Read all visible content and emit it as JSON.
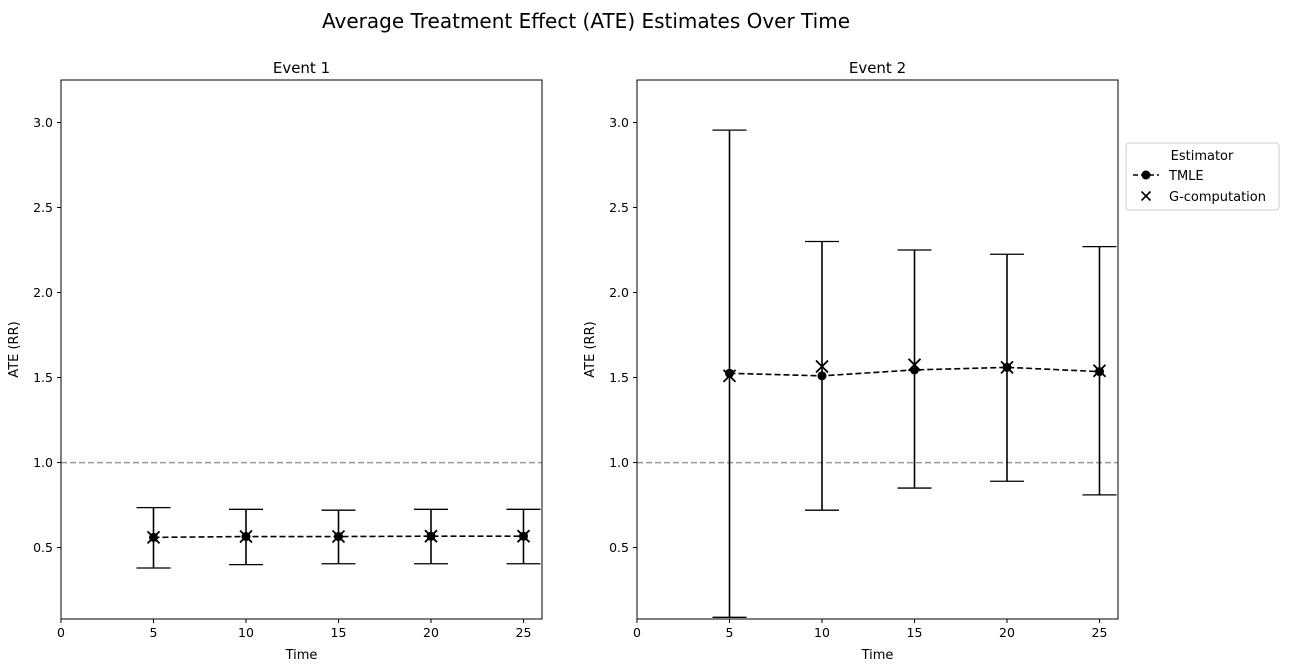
{
  "figure": {
    "title": "Average Treatment Effect (ATE) Estimates Over Time"
  },
  "legend": {
    "title": "Estimator",
    "placement": "outside-right",
    "entries": [
      {
        "label": "TMLE",
        "marker": "circle",
        "line": "dashed"
      },
      {
        "label": "G-computation",
        "marker": "x",
        "line": "none"
      }
    ]
  },
  "chart_data": [
    {
      "type": "scatter",
      "title": "Event 1",
      "xlabel": "Time",
      "ylabel": "ATE (RR)",
      "xlim": [
        0,
        26
      ],
      "ylim": [
        0.08,
        3.25
      ],
      "xticks": [
        0,
        5,
        10,
        15,
        20,
        25
      ],
      "xtick_labels": [
        "0",
        "5",
        "10",
        "15",
        "20",
        "25"
      ],
      "yticks": [
        0.5,
        1.0,
        1.5,
        2.0,
        2.5,
        3.0
      ],
      "ytick_labels": [
        "0.5",
        "1.0",
        "1.5",
        "2.0",
        "2.5",
        "3.0"
      ],
      "reference_line": 1.0,
      "grid": false,
      "x": [
        5,
        10,
        15,
        20,
        25
      ],
      "series": [
        {
          "name": "TMLE",
          "values": [
            0.56,
            0.565,
            0.565,
            0.567,
            0.567
          ],
          "ci_lower": [
            0.38,
            0.4,
            0.405,
            0.405,
            0.405
          ],
          "ci_upper": [
            0.735,
            0.725,
            0.72,
            0.725,
            0.725
          ]
        },
        {
          "name": "G-computation",
          "values": [
            0.56,
            0.565,
            0.565,
            0.567,
            0.567
          ]
        }
      ]
    },
    {
      "type": "scatter",
      "title": "Event 2",
      "xlabel": "Time",
      "ylabel": "ATE (RR)",
      "xlim": [
        0,
        26
      ],
      "ylim": [
        0.08,
        3.25
      ],
      "xticks": [
        0,
        5,
        10,
        15,
        20,
        25
      ],
      "xtick_labels": [
        "0",
        "5",
        "10",
        "15",
        "20",
        "25"
      ],
      "yticks": [
        0.5,
        1.0,
        1.5,
        2.0,
        2.5,
        3.0
      ],
      "ytick_labels": [
        "0.5",
        "1.0",
        "1.5",
        "2.0",
        "2.5",
        "3.0"
      ],
      "reference_line": 1.0,
      "grid": false,
      "x": [
        5,
        10,
        15,
        20,
        25
      ],
      "series": [
        {
          "name": "TMLE",
          "values": [
            1.525,
            1.51,
            1.545,
            1.56,
            1.535
          ],
          "ci_lower": [
            0.09,
            0.72,
            0.85,
            0.89,
            0.81
          ],
          "ci_upper": [
            2.955,
            2.3,
            2.25,
            2.225,
            2.27
          ]
        },
        {
          "name": "G-computation",
          "values": [
            1.51,
            1.565,
            1.575,
            1.56,
            1.54
          ]
        }
      ]
    }
  ],
  "colors": {
    "series": "#000000",
    "reference_line": "#999999",
    "axes": "#000000",
    "legend_border": "#cccccc"
  }
}
